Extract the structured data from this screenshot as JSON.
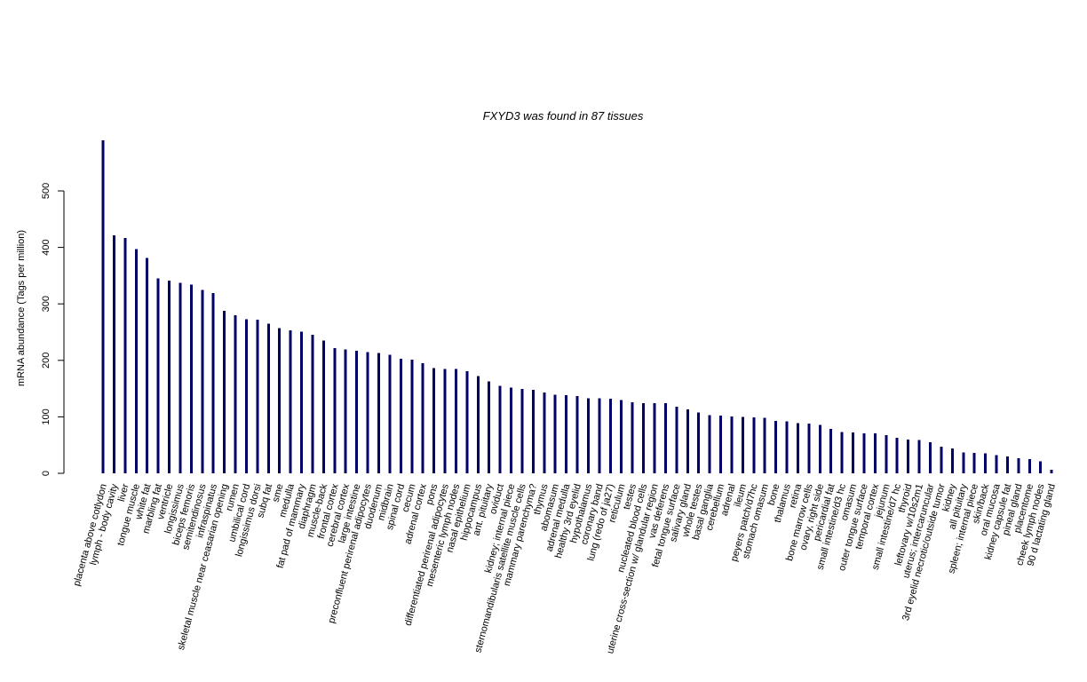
{
  "chart_data": {
    "type": "bar",
    "title": "FXYD3  was found in  87  tissues",
    "ylabel": "mRNA abundance (Tags per million)",
    "xlabel": "",
    "ylim": [
      0,
      590
    ],
    "yticks": [
      0,
      100,
      200,
      300,
      400,
      500
    ],
    "bar_color": "#000066",
    "grid": false,
    "categories": [
      "placenta above cotlydon",
      "lymph - body cavity",
      "liver",
      "tongue muscle",
      "white fat",
      "marbling fat",
      "ventricle",
      "longissimus",
      "biceps femoris",
      "semitendinosus",
      "infraspinatus",
      "skeletal muscle near ceasarian opening",
      "rumen",
      "umbilical cord",
      "longissimus dorsi",
      "subq fat",
      "sme",
      "medulla",
      "fat pad of mammary",
      "diaphragm",
      "muscle-back",
      "frontal cortex",
      "cerebral cortex",
      "large intestine",
      "preconfluent perirenal adipocytes",
      "duodenum",
      "midbrain",
      "spinal cord",
      "cecum",
      "adrenal cortex",
      "pons",
      "differentiated perirenal adipocytes",
      "mesenteric lymph nodes",
      "nasal epithelium",
      "hippocampus",
      "ant. pituitary",
      "oviduct",
      "kidney; internal piece",
      "sternomandibularis satellite muscle cells",
      "mammary parenchyma?",
      "thymus",
      "abomasum",
      "adrenal medulla",
      "healthy 3rd eyelid",
      "hypothalamus",
      "coronary band",
      "lung (redo of ja27)",
      "reticulum",
      "testes",
      "nucleated blood cells",
      "uterine cross-section w/ glandular region",
      "vas deferens",
      "fetal tongue surface",
      "salivary gland",
      "whole testes",
      "basal ganglia",
      "cerebellum",
      "adrenal",
      "ileum",
      "peyers patch/d7hc",
      "stomach omasum",
      "bone",
      "thalamus",
      "retina",
      "bone marrow cells",
      "ovary, right side",
      "pericardial fat",
      "small intestine/d3 hc",
      "omasum",
      "outer tongue surface",
      "temporal cortex",
      "jejunum",
      "small intestine/d7 hc",
      "thyroid",
      "leftovary w/10s2m1",
      "uterus; intercaruncular",
      "3rd eyelid necrotic/outside tumor",
      "kidney",
      "all pituitary",
      "spleen; internal piece",
      "skin/back",
      "oral mucosa",
      "kidney capsule fat",
      "pineal gland",
      "placentome",
      "cheek lymph nodes",
      "90 d lactating gland"
    ],
    "values": [
      590,
      421,
      417,
      397,
      381,
      345,
      341,
      337,
      334,
      325,
      319,
      288,
      280,
      273,
      272,
      265,
      257,
      253,
      251,
      245,
      235,
      222,
      219,
      217,
      215,
      213,
      210,
      203,
      201,
      195,
      186,
      185,
      185,
      181,
      172,
      163,
      155,
      152,
      149,
      148,
      143,
      139,
      138,
      137,
      133,
      133,
      132,
      130,
      126,
      124,
      124,
      124,
      118,
      113,
      108,
      103,
      102,
      101,
      100,
      99,
      98,
      93,
      92,
      89,
      88,
      86,
      79,
      73,
      72,
      71,
      71,
      68,
      63,
      60,
      59,
      55,
      47,
      44,
      37,
      36,
      35,
      32,
      30,
      27,
      25,
      21,
      6
    ]
  }
}
